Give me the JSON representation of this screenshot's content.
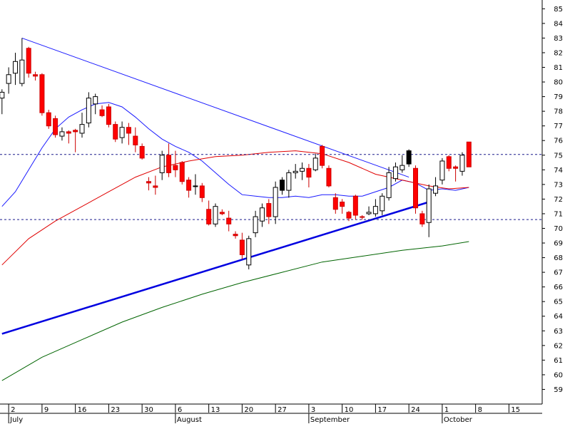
{
  "chart_data": {
    "type": "candlestick",
    "y_range": [
      58,
      85.6
    ],
    "y_ticks": [
      59,
      60,
      61,
      62,
      63,
      64,
      65,
      66,
      67,
      68,
      69,
      70,
      71,
      72,
      73,
      74,
      75,
      76,
      77,
      78,
      79,
      80,
      81,
      82,
      83,
      84,
      85
    ],
    "x_ticks": [
      {
        "label": "2",
        "day": 1
      },
      {
        "label": "9",
        "day": 6
      },
      {
        "label": "16",
        "day": 11
      },
      {
        "label": "23",
        "day": 16
      },
      {
        "label": "30",
        "day": 21
      },
      {
        "label": "6",
        "day": 26
      },
      {
        "label": "13",
        "day": 31
      },
      {
        "label": "20",
        "day": 36
      },
      {
        "label": "27",
        "day": 41
      },
      {
        "label": "3",
        "day": 46
      },
      {
        "label": "10",
        "day": 51
      },
      {
        "label": "17",
        "day": 56
      },
      {
        "label": "24",
        "day": 61
      },
      {
        "label": "1",
        "day": 66
      },
      {
        "label": "8",
        "day": 71
      },
      {
        "label": "15",
        "day": 76
      }
    ],
    "months": [
      {
        "label": "July",
        "day": 1
      },
      {
        "label": "August",
        "day": 26
      },
      {
        "label": "September",
        "day": 46
      },
      {
        "label": "October",
        "day": 66
      }
    ],
    "candles": [
      {
        "day": 0,
        "o": 78.9,
        "h": 79.5,
        "l": 77.8,
        "c": 79.3,
        "color": "white"
      },
      {
        "day": 1,
        "o": 79.9,
        "h": 81.0,
        "l": 79.2,
        "c": 80.5,
        "color": "white"
      },
      {
        "day": 2,
        "o": 80.6,
        "h": 82.0,
        "l": 79.8,
        "c": 81.4,
        "color": "white"
      },
      {
        "day": 3,
        "o": 79.9,
        "h": 83.0,
        "l": 79.7,
        "c": 81.5,
        "color": "white"
      },
      {
        "day": 4,
        "o": 82.3,
        "h": 82.4,
        "l": 80.3,
        "c": 80.6,
        "color": "red"
      },
      {
        "day": 5,
        "o": 80.5,
        "h": 80.7,
        "l": 80.1,
        "c": 80.4,
        "color": "red"
      },
      {
        "day": 6,
        "o": 80.5,
        "h": 80.6,
        "l": 77.7,
        "c": 77.9,
        "color": "red"
      },
      {
        "day": 7,
        "o": 77.9,
        "h": 78.1,
        "l": 76.8,
        "c": 77.0,
        "color": "red"
      },
      {
        "day": 8,
        "o": 77.5,
        "h": 77.7,
        "l": 76.2,
        "c": 76.4,
        "color": "red"
      },
      {
        "day": 9,
        "o": 76.3,
        "h": 76.9,
        "l": 76.0,
        "c": 76.6,
        "color": "white"
      },
      {
        "day": 10,
        "o": 76.5,
        "h": 76.7,
        "l": 75.8,
        "c": 76.6,
        "color": "red"
      },
      {
        "day": 11,
        "o": 76.6,
        "h": 76.8,
        "l": 75.2,
        "c": 76.7,
        "color": "red"
      },
      {
        "day": 12,
        "o": 76.5,
        "h": 77.9,
        "l": 76.2,
        "c": 77.1,
        "color": "white"
      },
      {
        "day": 13,
        "o": 77.2,
        "h": 79.3,
        "l": 76.9,
        "c": 78.9,
        "color": "white"
      },
      {
        "day": 14,
        "o": 78.5,
        "h": 79.2,
        "l": 77.8,
        "c": 79.0,
        "color": "white"
      },
      {
        "day": 15,
        "o": 78.1,
        "h": 78.4,
        "l": 77.6,
        "c": 77.7,
        "color": "red"
      },
      {
        "day": 16,
        "o": 78.3,
        "h": 78.5,
        "l": 76.9,
        "c": 77.1,
        "color": "red"
      },
      {
        "day": 17,
        "o": 77.1,
        "h": 77.3,
        "l": 75.9,
        "c": 76.1,
        "color": "red"
      },
      {
        "day": 18,
        "o": 76.2,
        "h": 77.3,
        "l": 75.8,
        "c": 76.9,
        "color": "white"
      },
      {
        "day": 19,
        "o": 76.9,
        "h": 77.2,
        "l": 75.7,
        "c": 76.5,
        "color": "red"
      },
      {
        "day": 20,
        "o": 76.3,
        "h": 76.9,
        "l": 75.2,
        "c": 75.7,
        "color": "red"
      },
      {
        "day": 21,
        "o": 75.6,
        "h": 75.8,
        "l": 74.7,
        "c": 74.8,
        "color": "red"
      },
      {
        "day": 22,
        "o": 73.2,
        "h": 73.5,
        "l": 72.6,
        "c": 73.1,
        "color": "red"
      },
      {
        "day": 23,
        "o": 72.9,
        "h": 73.6,
        "l": 72.3,
        "c": 72.8,
        "color": "red"
      },
      {
        "day": 24,
        "o": 73.8,
        "h": 75.3,
        "l": 73.3,
        "c": 75.0,
        "color": "white"
      },
      {
        "day": 25,
        "o": 75.0,
        "h": 75.8,
        "l": 73.5,
        "c": 73.8,
        "color": "red"
      },
      {
        "day": 26,
        "o": 74.0,
        "h": 75.3,
        "l": 73.5,
        "c": 74.3,
        "color": "red"
      },
      {
        "day": 27,
        "o": 74.5,
        "h": 74.6,
        "l": 73.0,
        "c": 73.2,
        "color": "red"
      },
      {
        "day": 28,
        "o": 73.3,
        "h": 73.5,
        "l": 72.1,
        "c": 72.6,
        "color": "red"
      },
      {
        "day": 29,
        "o": 72.9,
        "h": 73.7,
        "l": 72.3,
        "c": 72.9,
        "color": "black"
      },
      {
        "day": 30,
        "o": 72.9,
        "h": 73.1,
        "l": 71.8,
        "c": 72.1,
        "color": "red"
      },
      {
        "day": 31,
        "o": 71.3,
        "h": 71.9,
        "l": 70.2,
        "c": 70.3,
        "color": "red"
      },
      {
        "day": 32,
        "o": 70.3,
        "h": 71.7,
        "l": 70.1,
        "c": 71.5,
        "color": "white"
      },
      {
        "day": 33,
        "o": 71.1,
        "h": 71.3,
        "l": 70.9,
        "c": 71.0,
        "color": "red"
      },
      {
        "day": 34,
        "o": 70.7,
        "h": 71.2,
        "l": 69.8,
        "c": 70.3,
        "color": "red"
      },
      {
        "day": 35,
        "o": 69.5,
        "h": 69.8,
        "l": 69.3,
        "c": 69.6,
        "color": "red"
      },
      {
        "day": 36,
        "o": 69.2,
        "h": 69.7,
        "l": 67.9,
        "c": 68.2,
        "color": "red"
      },
      {
        "day": 37,
        "o": 67.5,
        "h": 69.5,
        "l": 67.2,
        "c": 69.3,
        "color": "white"
      },
      {
        "day": 38,
        "o": 69.7,
        "h": 71.2,
        "l": 69.4,
        "c": 70.8,
        "color": "white"
      },
      {
        "day": 39,
        "o": 70.5,
        "h": 71.7,
        "l": 70.1,
        "c": 71.4,
        "color": "white"
      },
      {
        "day": 40,
        "o": 71.7,
        "h": 72.0,
        "l": 70.3,
        "c": 70.8,
        "color": "red"
      },
      {
        "day": 41,
        "o": 70.8,
        "h": 73.2,
        "l": 70.3,
        "c": 72.8,
        "color": "white"
      },
      {
        "day": 42,
        "o": 72.6,
        "h": 73.5,
        "l": 72.3,
        "c": 73.3,
        "color": "black"
      },
      {
        "day": 43,
        "o": 72.6,
        "h": 74.0,
        "l": 72.1,
        "c": 73.8,
        "color": "white"
      },
      {
        "day": 44,
        "o": 73.8,
        "h": 74.4,
        "l": 73.4,
        "c": 73.9,
        "color": "white"
      },
      {
        "day": 45,
        "o": 73.9,
        "h": 74.5,
        "l": 73.3,
        "c": 74.1,
        "color": "white"
      },
      {
        "day": 46,
        "o": 74.1,
        "h": 74.4,
        "l": 72.8,
        "c": 73.5,
        "color": "red"
      },
      {
        "day": 47,
        "o": 74.0,
        "h": 75.1,
        "l": 73.9,
        "c": 74.8,
        "color": "white"
      },
      {
        "day": 48,
        "o": 75.6,
        "h": 75.7,
        "l": 74.1,
        "c": 74.3,
        "color": "red"
      },
      {
        "day": 49,
        "o": 74.1,
        "h": 74.3,
        "l": 72.8,
        "c": 72.9,
        "color": "red"
      },
      {
        "day": 50,
        "o": 72.1,
        "h": 72.4,
        "l": 71.0,
        "c": 71.3,
        "color": "red"
      },
      {
        "day": 51,
        "o": 71.8,
        "h": 72.0,
        "l": 71.0,
        "c": 71.5,
        "color": "red"
      },
      {
        "day": 52,
        "o": 71.1,
        "h": 71.2,
        "l": 70.5,
        "c": 70.7,
        "color": "red"
      },
      {
        "day": 53,
        "o": 72.2,
        "h": 72.3,
        "l": 70.6,
        "c": 70.9,
        "color": "red"
      },
      {
        "day": 54,
        "o": 70.8,
        "h": 70.9,
        "l": 70.6,
        "c": 70.8,
        "color": "red"
      },
      {
        "day": 55,
        "o": 71.0,
        "h": 71.5,
        "l": 70.9,
        "c": 71.1,
        "color": "white"
      },
      {
        "day": 56,
        "o": 71.0,
        "h": 72.0,
        "l": 70.8,
        "c": 71.5,
        "color": "white"
      },
      {
        "day": 57,
        "o": 71.2,
        "h": 72.4,
        "l": 70.9,
        "c": 72.2,
        "color": "white"
      },
      {
        "day": 58,
        "o": 72.1,
        "h": 74.2,
        "l": 71.9,
        "c": 73.8,
        "color": "white"
      },
      {
        "day": 59,
        "o": 73.4,
        "h": 74.5,
        "l": 73.2,
        "c": 74.2,
        "color": "white"
      },
      {
        "day": 60,
        "o": 74.0,
        "h": 75.0,
        "l": 73.8,
        "c": 74.3,
        "color": "white"
      },
      {
        "day": 61,
        "o": 75.3,
        "h": 75.4,
        "l": 74.2,
        "c": 74.4,
        "color": "black"
      },
      {
        "day": 62,
        "o": 74.1,
        "h": 74.3,
        "l": 71.0,
        "c": 71.4,
        "color": "red"
      },
      {
        "day": 63,
        "o": 71.0,
        "h": 71.2,
        "l": 70.1,
        "c": 70.3,
        "color": "red"
      },
      {
        "day": 64,
        "o": 70.4,
        "h": 73.0,
        "l": 69.4,
        "c": 72.7,
        "color": "white"
      },
      {
        "day": 65,
        "o": 72.4,
        "h": 73.5,
        "l": 72.2,
        "c": 72.9,
        "color": "white"
      },
      {
        "day": 66,
        "o": 73.3,
        "h": 74.8,
        "l": 73.0,
        "c": 74.6,
        "color": "white"
      },
      {
        "day": 67,
        "o": 74.9,
        "h": 75.0,
        "l": 73.9,
        "c": 74.1,
        "color": "red"
      },
      {
        "day": 68,
        "o": 74.1,
        "h": 74.3,
        "l": 73.2,
        "c": 74.2,
        "color": "red"
      },
      {
        "day": 69,
        "o": 73.9,
        "h": 75.2,
        "l": 73.6,
        "c": 75.0,
        "color": "white"
      },
      {
        "day": 70,
        "o": 75.9,
        "h": 75.9,
        "l": 74.2,
        "c": 74.2,
        "color": "red"
      }
    ],
    "moving_averages": [
      {
        "color": "#1a1aff",
        "points": [
          [
            0,
            71.5
          ],
          [
            2,
            72.5
          ],
          [
            4,
            74.0
          ],
          [
            6,
            75.5
          ],
          [
            8,
            76.8
          ],
          [
            10,
            77.6
          ],
          [
            12,
            78.1
          ],
          [
            14,
            78.5
          ],
          [
            16,
            78.6
          ],
          [
            18,
            78.3
          ],
          [
            20,
            77.6
          ],
          [
            22,
            76.8
          ],
          [
            24,
            76.1
          ],
          [
            26,
            75.6
          ],
          [
            28,
            75.2
          ],
          [
            30,
            74.6
          ],
          [
            32,
            73.8
          ],
          [
            34,
            73.0
          ],
          [
            36,
            72.3
          ],
          [
            38,
            72.2
          ],
          [
            40,
            72.1
          ],
          [
            42,
            72.1
          ],
          [
            44,
            72.2
          ],
          [
            46,
            72.1
          ],
          [
            48,
            72.3
          ],
          [
            50,
            72.3
          ],
          [
            52,
            72.2
          ],
          [
            54,
            72.2
          ],
          [
            56,
            72.5
          ],
          [
            58,
            72.8
          ],
          [
            60,
            73.3
          ],
          [
            62,
            73.1
          ],
          [
            64,
            72.6
          ],
          [
            66,
            72.7
          ],
          [
            68,
            72.6
          ],
          [
            70,
            72.8
          ]
        ]
      },
      {
        "color": "#e00000",
        "points": [
          [
            0,
            67.5
          ],
          [
            4,
            69.3
          ],
          [
            8,
            70.5
          ],
          [
            12,
            71.5
          ],
          [
            16,
            72.5
          ],
          [
            20,
            73.5
          ],
          [
            24,
            74.2
          ],
          [
            28,
            74.6
          ],
          [
            32,
            74.9
          ],
          [
            36,
            75.0
          ],
          [
            40,
            75.2
          ],
          [
            44,
            75.3
          ],
          [
            48,
            75.1
          ],
          [
            52,
            74.5
          ],
          [
            56,
            73.7
          ],
          [
            60,
            73.3
          ],
          [
            64,
            72.9
          ],
          [
            67,
            72.7
          ],
          [
            70,
            72.8
          ]
        ]
      },
      {
        "color": "#006400",
        "points": [
          [
            0,
            59.6
          ],
          [
            6,
            61.2
          ],
          [
            12,
            62.4
          ],
          [
            18,
            63.6
          ],
          [
            24,
            64.6
          ],
          [
            30,
            65.5
          ],
          [
            36,
            66.3
          ],
          [
            42,
            67.0
          ],
          [
            48,
            67.7
          ],
          [
            54,
            68.1
          ],
          [
            60,
            68.5
          ],
          [
            66,
            68.8
          ],
          [
            70,
            69.1
          ]
        ]
      }
    ],
    "trendlines": [
      {
        "color": "#1a1aff",
        "width": 1,
        "from": [
          3,
          83
        ],
        "to": [
          61,
          73.5
        ]
      },
      {
        "color": "#0000e0",
        "width": 2.5,
        "from": [
          0,
          62.8
        ],
        "to": [
          64,
          71.8
        ]
      }
    ],
    "horizontal_levels": [
      75.05,
      70.6
    ]
  }
}
